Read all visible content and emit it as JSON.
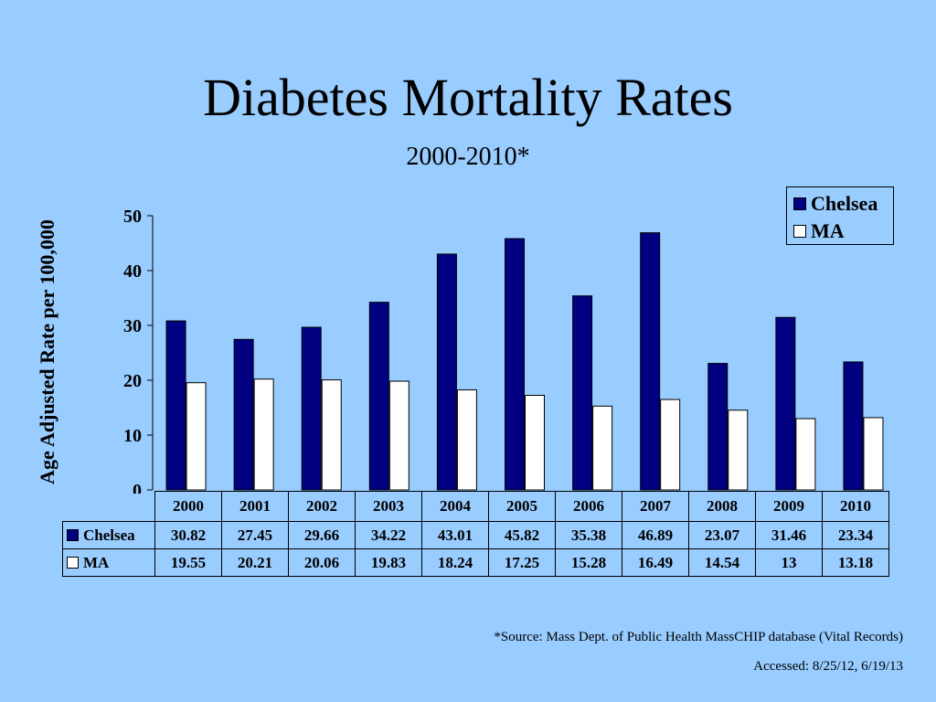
{
  "title": "Diabetes Mortality Rates",
  "subtitle": "2000-2010*",
  "footnote": {
    "source": "*Source: Mass Dept. of Public Health MassCHIP database (Vital Records)",
    "accessed": "Accessed: 8/25/12, 6/19/13"
  },
  "colors": {
    "background": "#99ccff",
    "chelsea": "#000080",
    "ma": "#ffffff"
  },
  "chart_data": {
    "type": "bar",
    "title": "Diabetes Mortality Rates",
    "subtitle": "2000-2010*",
    "xlabel": "",
    "ylabel": "Age Adjusted Rate per 100,000",
    "ylim": [
      0,
      50
    ],
    "yticks": [
      0,
      10,
      20,
      30,
      40,
      50
    ],
    "grid": false,
    "legend_position": "top-right",
    "categories": [
      "2000",
      "2001",
      "2002",
      "2003",
      "2004",
      "2005",
      "2006",
      "2007",
      "2008",
      "2009",
      "2010"
    ],
    "series": [
      {
        "name": "Chelsea",
        "color": "#000080",
        "values": [
          30.82,
          27.45,
          29.66,
          34.22,
          43.01,
          45.82,
          35.38,
          46.89,
          23.07,
          31.46,
          23.34
        ],
        "labels": [
          "30.82",
          "27.45",
          "29.66",
          "34.22",
          "43.01",
          "45.82",
          "35.38",
          "46.89",
          "23.07",
          "31.46",
          "23.34"
        ]
      },
      {
        "name": "MA",
        "color": "#ffffff",
        "values": [
          19.55,
          20.21,
          20.06,
          19.83,
          18.24,
          17.25,
          15.28,
          16.49,
          14.54,
          13,
          13.18
        ],
        "labels": [
          "19.55",
          "20.21",
          "20.06",
          "19.83",
          "18.24",
          "17.25",
          "15.28",
          "16.49",
          "14.54",
          "13",
          "13.18"
        ]
      }
    ]
  }
}
